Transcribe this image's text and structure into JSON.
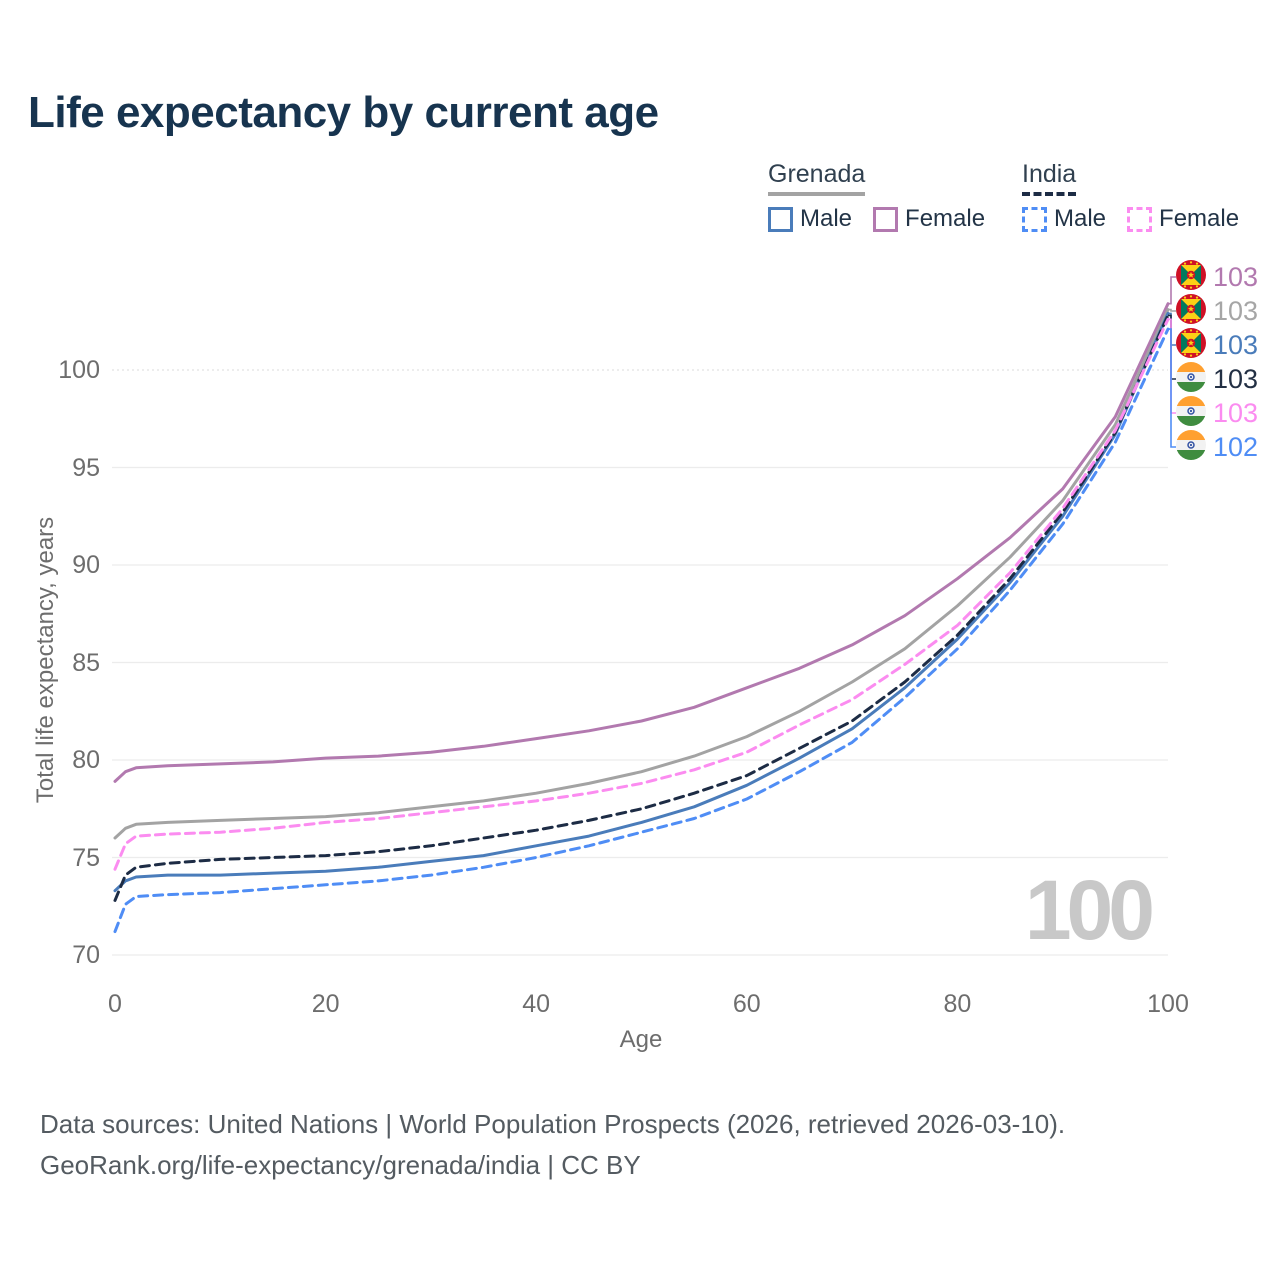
{
  "title": "Life expectancy by current age",
  "legend": {
    "groups": [
      {
        "label": "Grenada",
        "line_style": "solid",
        "underline_color": "#a3a3a3",
        "entries": [
          {
            "label": "Male",
            "color": "#4a7cba",
            "style": "solid"
          },
          {
            "label": "Female",
            "color": "#b279af",
            "style": "solid"
          }
        ]
      },
      {
        "label": "India",
        "line_style": "dashed",
        "underline_color": "#1d2c45",
        "entries": [
          {
            "label": "Male",
            "color": "#4f8df5",
            "style": "dashed"
          },
          {
            "label": "Female",
            "color": "#fb8cf0",
            "style": "dashed"
          }
        ]
      }
    ]
  },
  "chart_data": {
    "type": "line",
    "title": "Life expectancy by current age",
    "xlabel": "Age",
    "ylabel": "Total life expectancy, years",
    "xlim": [
      0,
      100
    ],
    "ylim": [
      70,
      100
    ],
    "xticks": [
      0,
      20,
      40,
      60,
      80,
      100
    ],
    "yticks": [
      70,
      75,
      80,
      85,
      90,
      95,
      100
    ],
    "grid": "horizontal",
    "legend_position": "top-right",
    "watermark": "100",
    "x": [
      0,
      1,
      2,
      5,
      10,
      15,
      20,
      25,
      30,
      35,
      40,
      45,
      50,
      55,
      60,
      65,
      70,
      75,
      80,
      85,
      90,
      95,
      100
    ],
    "series": [
      {
        "name": "Grenada Female",
        "country": "Grenada",
        "sex": "Female",
        "style": "solid",
        "color": "#b279af",
        "flag": "grenada",
        "end_label": "103",
        "label_color": "#b279af",
        "values": [
          78.9,
          79.4,
          79.6,
          79.7,
          79.8,
          79.9,
          80.1,
          80.2,
          80.4,
          80.7,
          81.1,
          81.5,
          82.0,
          82.7,
          83.7,
          84.7,
          85.9,
          87.4,
          89.3,
          91.4,
          93.9,
          97.6,
          103.4
        ]
      },
      {
        "name": "Grenada (both sexes)",
        "country": "Grenada",
        "sex": "Both",
        "style": "solid",
        "color": "#a3a3a3",
        "flag": "grenada",
        "end_label": "103",
        "label_color": "#a6a6a6",
        "values": [
          76.0,
          76.5,
          76.7,
          76.8,
          76.9,
          77.0,
          77.1,
          77.3,
          77.6,
          77.9,
          78.3,
          78.8,
          79.4,
          80.2,
          81.2,
          82.5,
          84.0,
          85.7,
          87.9,
          90.4,
          93.3,
          97.2,
          103.1
        ]
      },
      {
        "name": "Grenada Male",
        "country": "Grenada",
        "sex": "Male",
        "style": "solid",
        "color": "#4a7cba",
        "flag": "grenada",
        "end_label": "103",
        "label_color": "#4a7cba",
        "values": [
          73.3,
          73.8,
          74.0,
          74.1,
          74.1,
          74.2,
          74.3,
          74.5,
          74.8,
          75.1,
          75.6,
          76.1,
          76.8,
          77.6,
          78.7,
          80.1,
          81.6,
          83.7,
          86.2,
          89.1,
          92.5,
          96.7,
          102.9
        ]
      },
      {
        "name": "India (both sexes)",
        "country": "India",
        "sex": "Both",
        "style": "dashed",
        "color": "#1d2c45",
        "flag": "india",
        "end_label": "103",
        "label_color": "#233044",
        "values": [
          72.8,
          74.1,
          74.5,
          74.7,
          74.9,
          75.0,
          75.1,
          75.3,
          75.6,
          76.0,
          76.4,
          76.9,
          77.5,
          78.3,
          79.2,
          80.6,
          82.0,
          84.0,
          86.4,
          89.3,
          92.7,
          96.8,
          102.8
        ]
      },
      {
        "name": "India Female",
        "country": "India",
        "sex": "Female",
        "style": "dashed",
        "color": "#fb8cf0",
        "flag": "india",
        "end_label": "103",
        "label_color": "#fb8cf0",
        "values": [
          74.4,
          75.7,
          76.1,
          76.2,
          76.3,
          76.5,
          76.8,
          77.0,
          77.3,
          77.6,
          77.9,
          78.3,
          78.8,
          79.5,
          80.4,
          81.8,
          83.1,
          84.9,
          86.9,
          89.6,
          92.9,
          96.9,
          102.6
        ]
      },
      {
        "name": "India Male",
        "country": "India",
        "sex": "Male",
        "style": "dashed",
        "color": "#4f8df5",
        "flag": "india",
        "end_label": "102",
        "label_color": "#4f8df5",
        "values": [
          71.2,
          72.6,
          73.0,
          73.1,
          73.2,
          73.4,
          73.6,
          73.8,
          74.1,
          74.5,
          75.0,
          75.6,
          76.3,
          77.0,
          78.0,
          79.4,
          80.9,
          83.2,
          85.7,
          88.7,
          92.1,
          96.3,
          102.1
        ]
      }
    ]
  },
  "footer": {
    "line1": "Data sources: United Nations | World Population Prospects (2026, retrieved 2026-03-10).",
    "line2": "GeoRank.org/life-expectancy/grenada/india | CC BY"
  }
}
